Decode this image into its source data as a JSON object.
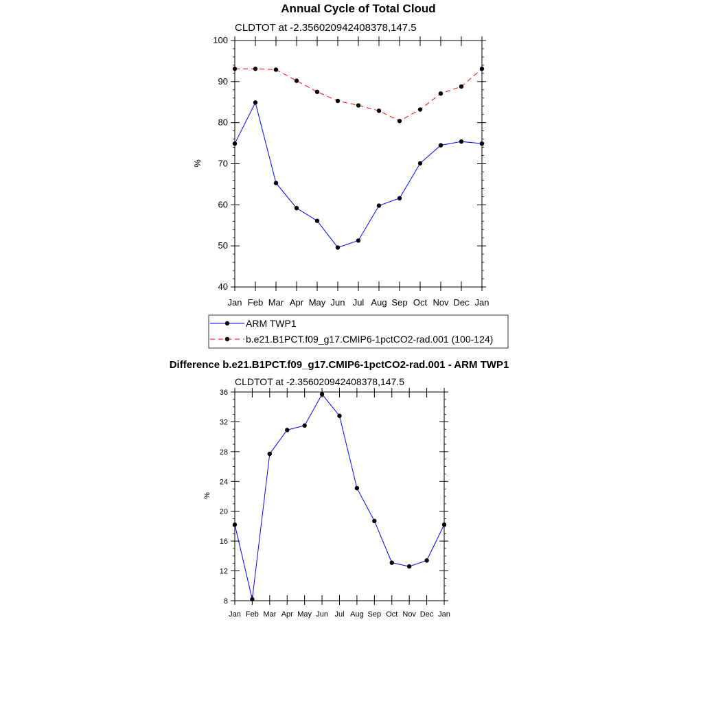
{
  "chart_data": [
    {
      "type": "line",
      "title": "Annual Cycle of Total Cloud",
      "subtitle": "CLDTOT at -2.356020942408378,147.5",
      "xlabel": "",
      "ylabel": "%",
      "ylim": [
        40,
        100
      ],
      "yticks": [
        40,
        50,
        60,
        70,
        80,
        90,
        100
      ],
      "categories": [
        "Jan",
        "Feb",
        "Mar",
        "Apr",
        "May",
        "Jun",
        "Jul",
        "Aug",
        "Sep",
        "Oct",
        "Nov",
        "Dec",
        "Jan"
      ],
      "legend_position": "bottom",
      "series": [
        {
          "name": "ARM TWP1",
          "color": "#0000ff",
          "dash": "solid",
          "values": [
            74.9,
            84.9,
            65.3,
            59.2,
            56.1,
            49.6,
            51.3,
            59.8,
            61.6,
            70.1,
            74.5,
            75.4,
            74.9
          ]
        },
        {
          "name": "b.e21.B1PCT.f09_g17.CMIP6-1pctCO2-rad.001 (100-124)",
          "color": "#ff0000",
          "dash": "dashed",
          "values": [
            93.1,
            93.1,
            92.9,
            90.2,
            87.5,
            85.3,
            84.2,
            82.9,
            80.4,
            83.2,
            87.1,
            88.8,
            93.1
          ]
        }
      ]
    },
    {
      "type": "line",
      "title": "Difference b.e21.B1PCT.f09_g17.CMIP6-1pctCO2-rad.001 - ARM TWP1",
      "subtitle": "CLDTOT at -2.356020942408378,147.5",
      "xlabel": "",
      "ylabel": "%",
      "ylim": [
        8,
        36
      ],
      "yticks": [
        8,
        12,
        16,
        20,
        24,
        28,
        32,
        36
      ],
      "categories": [
        "Jan",
        "Feb",
        "Mar",
        "Apr",
        "May",
        "Jun",
        "Jul",
        "Aug",
        "Sep",
        "Oct",
        "Nov",
        "Dec",
        "Jan"
      ],
      "series": [
        {
          "color": "#0000ff",
          "dash": "solid",
          "values": [
            18.2,
            8.2,
            27.7,
            30.9,
            31.5,
            35.7,
            32.8,
            23.1,
            18.7,
            13.1,
            12.6,
            13.4,
            18.2
          ]
        }
      ]
    }
  ]
}
